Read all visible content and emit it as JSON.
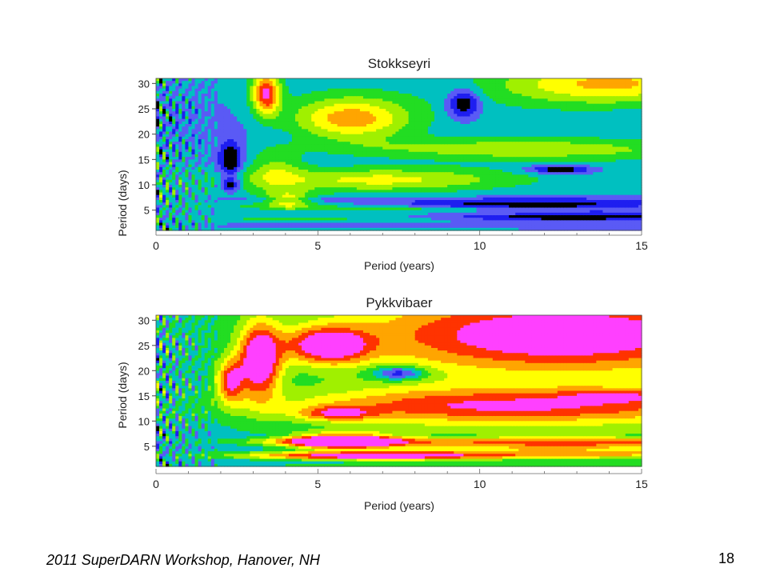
{
  "chart_data": [
    {
      "type": "heatmap",
      "title": "Stokkseyri",
      "xlabel": "Period (years)",
      "ylabel": "Period (days)",
      "xlim": [
        0,
        15
      ],
      "ylim": [
        1,
        31
      ],
      "xticks": [
        0,
        5,
        10,
        15
      ],
      "yticks": [
        5,
        10,
        15,
        20,
        25,
        30
      ],
      "colormap": [
        "#000000",
        "#1e1ef0",
        "#5a5af5",
        "#00c0c0",
        "#22dd22",
        "#a0f000",
        "#ffff00",
        "#ffa500",
        "#ff3300",
        "#ff40ff"
      ],
      "features": [
        {
          "x": 3.4,
          "y": 28,
          "sx": 0.3,
          "sy": 3,
          "a": 6
        },
        {
          "x": 6.0,
          "y": 23,
          "sx": 1.3,
          "sy": 3,
          "a": 4.5
        },
        {
          "x": 14.0,
          "y": 30,
          "sx": 2.5,
          "sy": 3,
          "a": 4.5
        },
        {
          "x": 9.5,
          "y": 26,
          "sx": 0.35,
          "sy": 2,
          "a": -3.5
        },
        {
          "x": 11.0,
          "y": 17,
          "sx": 4,
          "sy": 1.5,
          "a": 2.5
        },
        {
          "x": 7.0,
          "y": 11,
          "sx": 3,
          "sy": 1.8,
          "a": 3.5
        },
        {
          "x": 12.5,
          "y": 13,
          "sx": 0.7,
          "sy": 0.6,
          "a": -3.5
        },
        {
          "x": 2.3,
          "y": 15,
          "sx": 0.25,
          "sy": 2.5,
          "a": -3.5
        },
        {
          "x": 2.3,
          "y": 10,
          "sx": 0.2,
          "sy": 1,
          "a": -3
        },
        {
          "x": 11.5,
          "y": 6,
          "sx": 3.5,
          "sy": 0.5,
          "a": -3.5
        },
        {
          "x": 13,
          "y": 3.5,
          "sx": 3.0,
          "sy": 0.4,
          "a": -3.5
        },
        {
          "x": 7.5,
          "y": 5,
          "sx": 2.5,
          "sy": 0.6,
          "a": 2
        },
        {
          "x": 3.7,
          "y": 13,
          "sx": 0.6,
          "sy": 3,
          "a": 2
        },
        {
          "x": 4.1,
          "y": 7,
          "sx": 0.5,
          "sy": 1.2,
          "a": 3
        }
      ]
    },
    {
      "type": "heatmap",
      "title": "Pykkvibaer",
      "xlabel": "Period (years)",
      "ylabel": "Period (days)",
      "xlim": [
        0,
        15
      ],
      "ylim": [
        1,
        31
      ],
      "xticks": [
        0,
        5,
        10,
        15
      ],
      "yticks": [
        5,
        10,
        15,
        20,
        25,
        30
      ],
      "colormap": [
        "#000000",
        "#1e1ef0",
        "#5a5af5",
        "#00c0c0",
        "#22dd22",
        "#a0f000",
        "#ffff00",
        "#ffa500",
        "#ff3300",
        "#ff40ff"
      ],
      "features": [
        {
          "x": 3.2,
          "y": 22,
          "sx": 0.45,
          "sy": 5,
          "a": 7
        },
        {
          "x": 5.3,
          "y": 25,
          "sx": 0.9,
          "sy": 2.5,
          "a": 6
        },
        {
          "x": 12.5,
          "y": 27,
          "sx": 4,
          "sy": 5,
          "a": 5.5
        },
        {
          "x": 11.0,
          "y": 13,
          "sx": 5,
          "sy": 2.5,
          "a": 4.5
        },
        {
          "x": 14.3,
          "y": 15,
          "sx": 1.2,
          "sy": 0.9,
          "a": 2
        },
        {
          "x": 2.3,
          "y": 18,
          "sx": 0.3,
          "sy": 3,
          "a": 5
        },
        {
          "x": 7.5,
          "y": 19.5,
          "sx": 0.6,
          "sy": 1.0,
          "a": -4
        },
        {
          "x": 5.6,
          "y": 11.5,
          "sx": 0.8,
          "sy": 1.0,
          "a": 3.5
        },
        {
          "x": 5.7,
          "y": 6,
          "sx": 1.2,
          "sy": 1.0,
          "a": 9
        },
        {
          "x": 6.5,
          "y": 3,
          "sx": 2.5,
          "sy": 0.6,
          "a": 5
        },
        {
          "x": 12.5,
          "y": 5,
          "sx": 4,
          "sy": 1.5,
          "a": 3.5
        }
      ]
    }
  ],
  "footer": {
    "text": "2011 SuperDARN Workshop, Hanover, NH",
    "page_number": "18"
  }
}
